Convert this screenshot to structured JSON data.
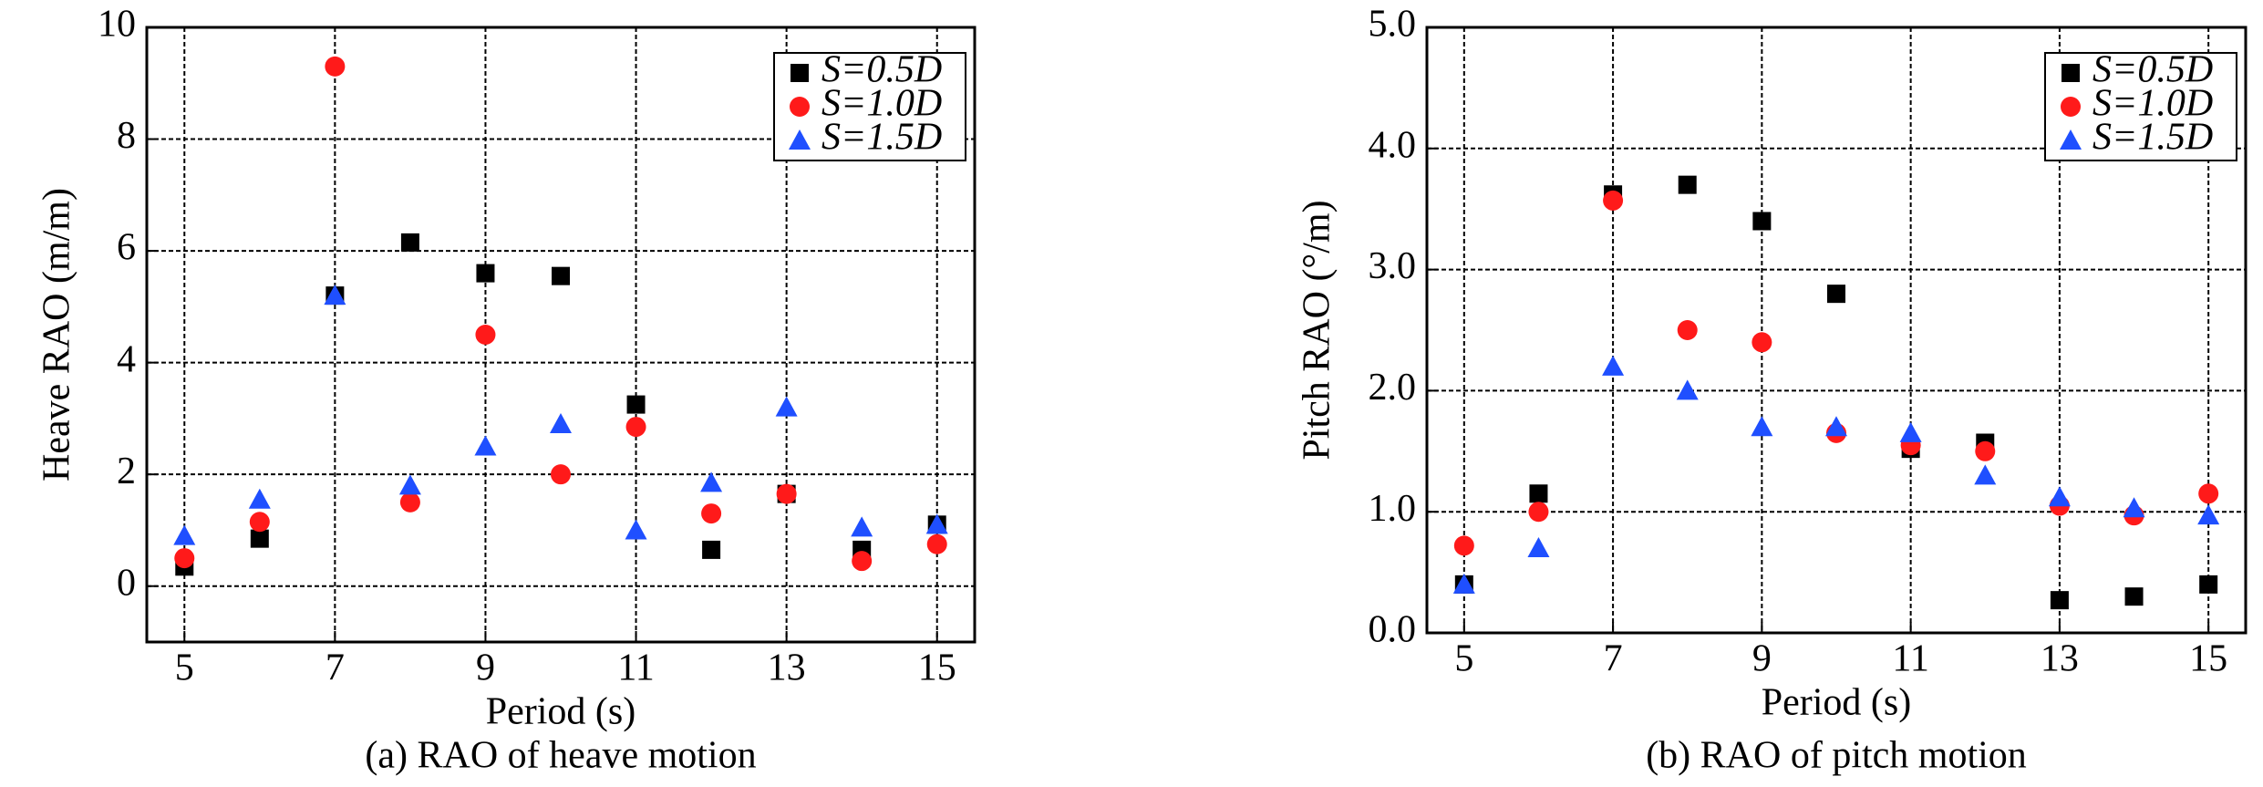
{
  "chart_data": [
    {
      "type": "scatter",
      "caption": "(a) RAO of heave motion",
      "x_label": "Period (s)",
      "y_label": "Heave RAO (m/m)",
      "x": [
        5,
        6,
        7,
        8,
        9,
        10,
        11,
        12,
        13,
        14,
        15
      ],
      "xlim": [
        4.5,
        15.5
      ],
      "xticks": [
        5,
        7,
        9,
        11,
        13,
        15
      ],
      "ylim": [
        -1,
        10
      ],
      "yticks": [
        0,
        2,
        4,
        6,
        8,
        10
      ],
      "grid": true,
      "legend": "upper right",
      "series": [
        {
          "name": "S=0.5D",
          "color": "#000000",
          "marker": "square",
          "values": [
            0.35,
            0.85,
            5.2,
            6.15,
            5.6,
            5.55,
            3.25,
            0.65,
            1.65,
            0.65,
            1.1
          ]
        },
        {
          "name": "S=1.0D",
          "color": "#ff1a1a",
          "marker": "circle",
          "values": [
            0.5,
            1.15,
            9.3,
            1.5,
            4.5,
            2.0,
            2.85,
            1.3,
            1.65,
            0.45,
            0.75
          ]
        },
        {
          "name": "S=1.5D",
          "color": "#1f4fff",
          "marker": "triangle",
          "values": [
            0.9,
            1.55,
            5.2,
            1.8,
            2.5,
            2.9,
            1.0,
            1.85,
            3.2,
            1.05,
            1.1
          ]
        }
      ]
    },
    {
      "type": "scatter",
      "caption": "(b) RAO of pitch motion",
      "x_label": "Period (s)",
      "y_label": "Pitch RAO (°/m)",
      "x": [
        5,
        6,
        7,
        8,
        9,
        10,
        11,
        12,
        13,
        14,
        15
      ],
      "xlim": [
        4.5,
        15.5
      ],
      "xticks": [
        5,
        7,
        9,
        11,
        13,
        15
      ],
      "ylim": [
        0,
        5
      ],
      "yticks": [
        {
          "value": 0,
          "label": "0.0"
        },
        {
          "value": 1,
          "label": "1.0"
        },
        {
          "value": 2,
          "label": "2.0"
        },
        {
          "value": 3,
          "label": "3.0"
        },
        {
          "value": 4,
          "label": "4.0"
        },
        {
          "value": 5,
          "label": "5.0"
        }
      ],
      "grid": true,
      "legend": "upper right",
      "series": [
        {
          "name": "S=0.5D",
          "color": "#000000",
          "marker": "square",
          "values": [
            0.4,
            1.15,
            3.62,
            3.7,
            3.4,
            2.8,
            1.52,
            1.57,
            0.27,
            0.3,
            0.4
          ]
        },
        {
          "name": "S=1.0D",
          "color": "#ff1a1a",
          "marker": "circle",
          "values": [
            0.72,
            1.0,
            3.57,
            2.5,
            2.4,
            1.65,
            1.55,
            1.5,
            1.05,
            0.97,
            1.15
          ]
        },
        {
          "name": "S=1.5D",
          "color": "#1f4fff",
          "marker": "triangle",
          "values": [
            0.4,
            0.7,
            2.2,
            2.0,
            1.7,
            1.7,
            1.65,
            1.3,
            1.12,
            1.03,
            0.97
          ]
        }
      ]
    }
  ]
}
